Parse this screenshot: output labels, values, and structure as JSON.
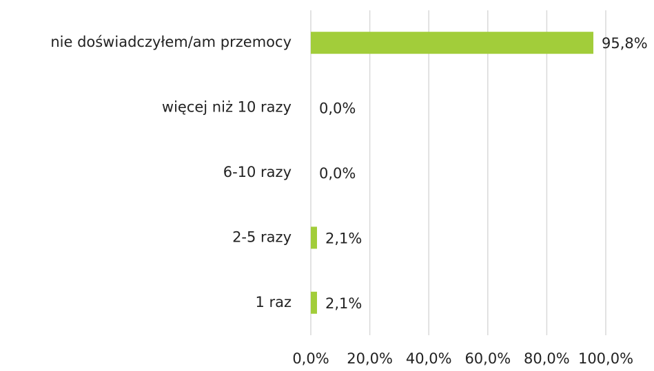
{
  "chart_data": {
    "type": "hbar",
    "categories": [
      "nie doświadczyłem/am przemocy",
      "więcej niż 10 razy",
      "6-10 razy",
      "2-5 razy",
      "1 raz"
    ],
    "values": [
      95.8,
      0,
      0,
      2.1,
      2.1
    ],
    "value_labels": [
      "95,8%",
      "0,0%",
      "0,0%",
      "2,1%",
      "2,1%"
    ],
    "color": "#a2cd3a",
    "xlim": [
      0,
      100
    ],
    "xticks": [
      {
        "value": 0,
        "label": "0,0%"
      },
      {
        "value": 20,
        "label": "20,0%"
      },
      {
        "value": 40,
        "label": "40,0%"
      },
      {
        "value": 60,
        "label": "60,0%"
      },
      {
        "value": 80,
        "label": "80,0%"
      },
      {
        "value": 100,
        "label": "100,0%"
      }
    ],
    "grid": true
  }
}
